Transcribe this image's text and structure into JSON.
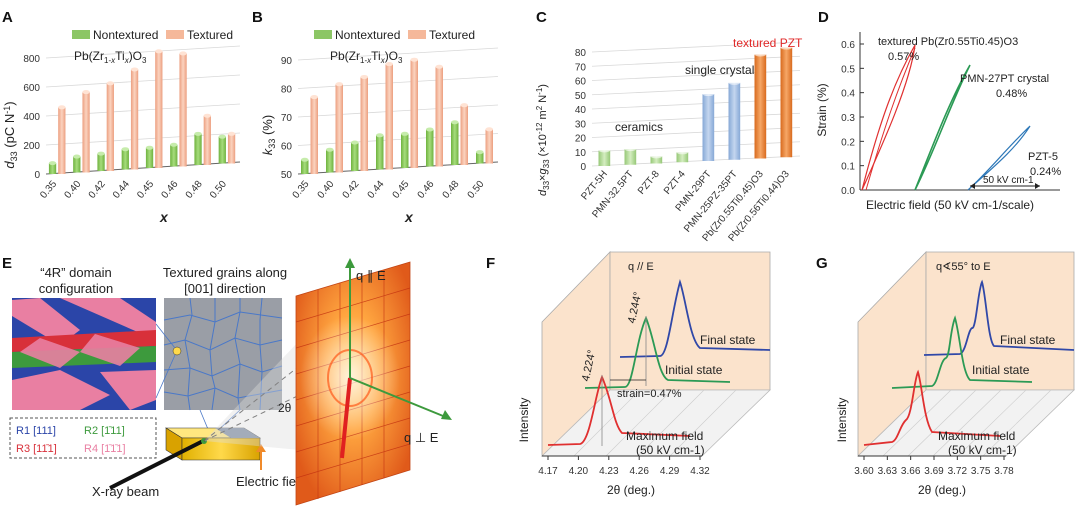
{
  "panels": {
    "A": "A",
    "B": "B",
    "C": "C",
    "D": "D",
    "E": "E",
    "F": "F",
    "G": "G"
  },
  "chart_data": [
    {
      "id": "A",
      "type": "bar",
      "title": "Pb(Zr1-xTix)O3",
      "categories": [
        "0.35",
        "0.40",
        "0.42",
        "0.44",
        "0.45",
        "0.46",
        "0.48",
        "0.50"
      ],
      "series": [
        {
          "name": "Nontextured",
          "values": [
            75,
            110,
            120,
            140,
            140,
            150,
            215,
            185
          ]
        },
        {
          "name": "Textured",
          "values": [
            460,
            555,
            605,
            690,
            805,
            780,
            340,
            205
          ]
        }
      ],
      "xlabel": "x",
      "ylabel": "d33 (pC N-1)",
      "ylim": [
        0,
        800
      ],
      "yticks": [
        "0",
        "200",
        "400",
        "600",
        "800"
      ],
      "colors": {
        "Nontextured": "#8cc665",
        "Textured": "#f5b89a"
      }
    },
    {
      "id": "B",
      "type": "bar",
      "title": "Pb(Zr1-xTix)O3",
      "categories": [
        "0.35",
        "0.40",
        "0.42",
        "0.44",
        "0.45",
        "0.46",
        "0.48",
        "0.50"
      ],
      "series": [
        {
          "name": "Nontextured",
          "values": [
            55,
            58,
            60,
            62,
            62,
            63,
            65,
            54
          ]
        },
        {
          "name": "Textured",
          "values": [
            77,
            81,
            83,
            87,
            88,
            85,
            71,
            62
          ]
        }
      ],
      "xlabel": "x",
      "ylabel": "k33 (%)",
      "ylim": [
        50,
        90
      ],
      "yticks": [
        "50",
        "60",
        "70",
        "80",
        "90"
      ],
      "colors": {
        "Nontextured": "#8cc665",
        "Textured": "#f5b89a"
      }
    },
    {
      "id": "C",
      "type": "bar",
      "categories": [
        "PZT-5H",
        "PMN-32.5PT",
        "PZT-8",
        "PZT-4",
        "PMN-29PT",
        "PMN-25PZ-35PT",
        "Pb(Zr0.55Ti0.45)O3",
        "Pb(Zr0.56Ti0.44)O3"
      ],
      "values": [
        11,
        11,
        5,
        7,
        47,
        54,
        73,
        77
      ],
      "groups": [
        "ceramics",
        "ceramics",
        "ceramics",
        "ceramics",
        "single crystal",
        "single crystal",
        "textured PZT",
        "textured PZT"
      ],
      "group_labels": {
        "ceramics": "ceramics",
        "single crystal": "single crystal",
        "textured PZT": "textured PZT"
      },
      "colors": {
        "ceramics": "#b6dd95",
        "single crystal": "#a8c3e6",
        "textured PZT": "#ef8a3e"
      },
      "ylabel": "d33 × g33 (×10-12 m2 N-1)",
      "ylim": [
        0,
        80
      ],
      "yticks": [
        "0",
        "10",
        "20",
        "30",
        "40",
        "50",
        "60",
        "70",
        "80"
      ]
    },
    {
      "id": "D",
      "type": "line",
      "ylabel": "Strain (%)",
      "xlabel": "Electric field (50 kV cm-1/scale)",
      "ylim": [
        0,
        0.6
      ],
      "yticks": [
        "0.0",
        "0.1",
        "0.2",
        "0.3",
        "0.4",
        "0.5",
        "0.6"
      ],
      "scale_bar": "50 kV cm-1",
      "series": [
        {
          "name": "textured Pb(Zr0.55Ti0.45)O3",
          "value": "0.57%",
          "max_strain": 0.57,
          "color": "#e03030"
        },
        {
          "name": "PMN-27PT crystal",
          "value": "0.48%",
          "max_strain": 0.48,
          "color": "#2b9a55"
        },
        {
          "name": "PZT-5",
          "value": "0.24%",
          "max_strain": 0.24,
          "color": "#2e78b8"
        }
      ]
    },
    {
      "id": "F",
      "type": "line",
      "label": "q // E",
      "xlabel": "2θ (deg.)",
      "ylabel": "Intensity",
      "xticks": [
        "4.17",
        "4.20",
        "4.23",
        "4.26",
        "4.29",
        "4.32"
      ],
      "states": [
        "Final state",
        "Initial state",
        "Maximum field",
        "(50 kV cm-1)"
      ],
      "peaks": {
        "max_field": 4.224,
        "initial": 4.244
      },
      "peak_labels": [
        "4.224°",
        "4.244°"
      ],
      "strain_label": "strain=0.47%"
    },
    {
      "id": "G",
      "type": "line",
      "label": "q∢55° to E",
      "xlabel": "2θ (deg.)",
      "ylabel": "Intensity",
      "xticks": [
        "3.60",
        "3.63",
        "3.66",
        "3.69",
        "3.72",
        "3.75",
        "3.78"
      ],
      "states": [
        "Final state",
        "Initial state",
        "Maximum field",
        "(50 kV cm-1)"
      ]
    }
  ],
  "panelE": {
    "domain_title_1": "“4R” domain",
    "domain_title_2": "configuration",
    "grains_title_1": "Textured grains along",
    "grains_title_2": "[001] direction",
    "variants": [
      {
        "label": "R1 [111]",
        "color": "#2b45a8"
      },
      {
        "label": "R2 [1̄11]",
        "color": "#3d9a3d"
      },
      {
        "label": "R3 [11̄1]",
        "color": "#d8303a"
      },
      {
        "label": "R4 [1̄1̄1]",
        "color": "#e97fa2"
      }
    ],
    "beam_label": "X-ray beam",
    "field_label": "Electric field",
    "two_theta": "2θ",
    "q_par": "q ∥ E",
    "q_perp": "q ⊥ E"
  }
}
